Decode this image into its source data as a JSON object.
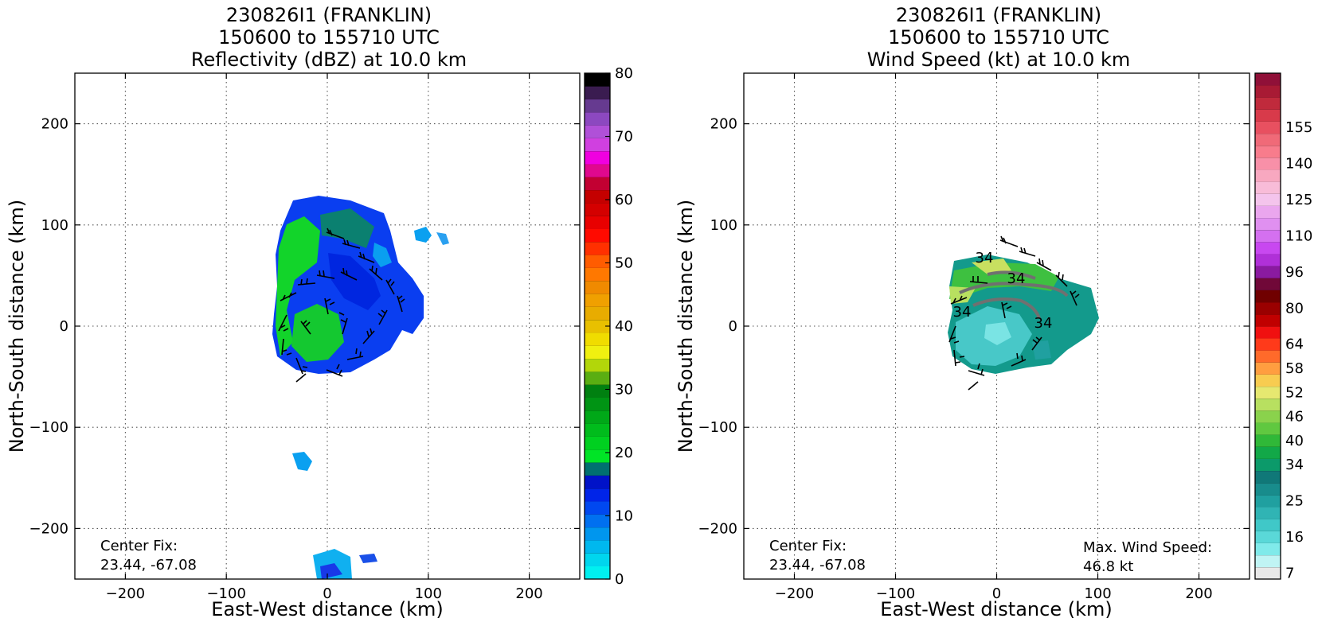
{
  "chart_data": [
    {
      "type": "heatmap",
      "title": [
        "230826I1 (FRANKLIN)",
        "150600 to 155710 UTC",
        "Reflectivity (dBZ) at 10.0 km"
      ],
      "xlabel": "East-West distance (km)",
      "ylabel": "North-South distance (km)",
      "xlim": [
        -250,
        250
      ],
      "ylim": [
        -250,
        250
      ],
      "xticks": [
        -200,
        -100,
        0,
        100,
        200
      ],
      "yticks": [
        -200,
        -100,
        0,
        100,
        200
      ],
      "xtick_labels": [
        "−200",
        "−100",
        "0",
        "100",
        "200"
      ],
      "ytick_labels": [
        "−200",
        "−100",
        "0",
        "100",
        "200"
      ],
      "grid": true,
      "colorbar": {
        "min": 0,
        "max": 80,
        "tick_values": [
          0,
          10,
          20,
          30,
          40,
          50,
          60,
          70,
          80
        ],
        "tick_labels": [
          "0",
          "10",
          "20",
          "30",
          "40",
          "50",
          "60",
          "70",
          "80"
        ],
        "colors": [
          "#00f0f0",
          "#00d6ee",
          "#00b8ee",
          "#0096ee",
          "#0070f0",
          "#0048f0",
          "#0024e8",
          "#0012c8",
          "#007070",
          "#00e426",
          "#00d020",
          "#00bc1c",
          "#00a818",
          "#009414",
          "#008010",
          "#5aae12",
          "#b2d60a",
          "#f0f010",
          "#f0dc00",
          "#e8c000",
          "#e8ac00",
          "#f0a000",
          "#f08a00",
          "#ff7800",
          "#ff5c00",
          "#ff3000",
          "#ff0a00",
          "#e80000",
          "#d40000",
          "#c40000",
          "#c20032",
          "#e0088e",
          "#f000e0",
          "#d040e0",
          "#b050d8",
          "#8c48c0",
          "#663a90",
          "#3a1c50",
          "#000000"
        ]
      },
      "annotations": [
        {
          "text": [
            "Center Fix:",
            "23.44, -67.08"
          ]
        }
      ]
    },
    {
      "type": "heatmap",
      "title": [
        "230826I1 (FRANKLIN)",
        "150600 to 155710 UTC",
        "Wind Speed (kt) at 10.0 km"
      ],
      "xlabel": "East-West distance (km)",
      "ylabel": "North-South distance (km)",
      "xlim": [
        -250,
        250
      ],
      "ylim": [
        -250,
        250
      ],
      "xticks": [
        -200,
        -100,
        0,
        100,
        200
      ],
      "yticks": [
        -200,
        -100,
        0,
        100,
        200
      ],
      "xtick_labels": [
        "−200",
        "−100",
        "0",
        "100",
        "200"
      ],
      "ytick_labels": [
        "−200",
        "−100",
        "0",
        "100",
        "200"
      ],
      "grid": true,
      "contour_labels": [
        "34",
        "34",
        "34",
        "34"
      ],
      "colorbar": {
        "tick_labels": [
          "7",
          "16",
          "25",
          "34",
          "40",
          "46",
          "52",
          "58",
          "64",
          "80",
          "96",
          "110",
          "125",
          "140",
          "155"
        ],
        "tick_bins": [
          0,
          3,
          6,
          9,
          11,
          13,
          15,
          17,
          19,
          22,
          25,
          28,
          31,
          34,
          37
        ],
        "colors": [
          "#e8e8e8",
          "#c0f4f4",
          "#80eaea",
          "#5ad8d8",
          "#40c8c8",
          "#30b4b4",
          "#20a0a0",
          "#188c8c",
          "#107878",
          "#0c9a6a",
          "#12a848",
          "#30b838",
          "#60c840",
          "#8ad24c",
          "#b8e060",
          "#e6e870",
          "#f8cc50",
          "#ff9e40",
          "#ff6a2a",
          "#ff3a1a",
          "#f01010",
          "#c00000",
          "#9a0000",
          "#700000",
          "#700838",
          "#8a1aa0",
          "#b030d8",
          "#c848f0",
          "#d470f0",
          "#e090f0",
          "#eaa6ee",
          "#f4c4ec",
          "#f8bcd8",
          "#f8a8c0",
          "#f890a8",
          "#f87c8c",
          "#f06a78",
          "#e85060",
          "#d83a4a",
          "#c02a3c",
          "#a81a34",
          "#901038"
        ]
      },
      "annotations": [
        {
          "text": [
            "Center Fix:",
            "23.44, -67.08"
          ]
        },
        {
          "text": [
            "Max. Wind Speed:",
            "46.8 kt"
          ]
        }
      ]
    }
  ]
}
